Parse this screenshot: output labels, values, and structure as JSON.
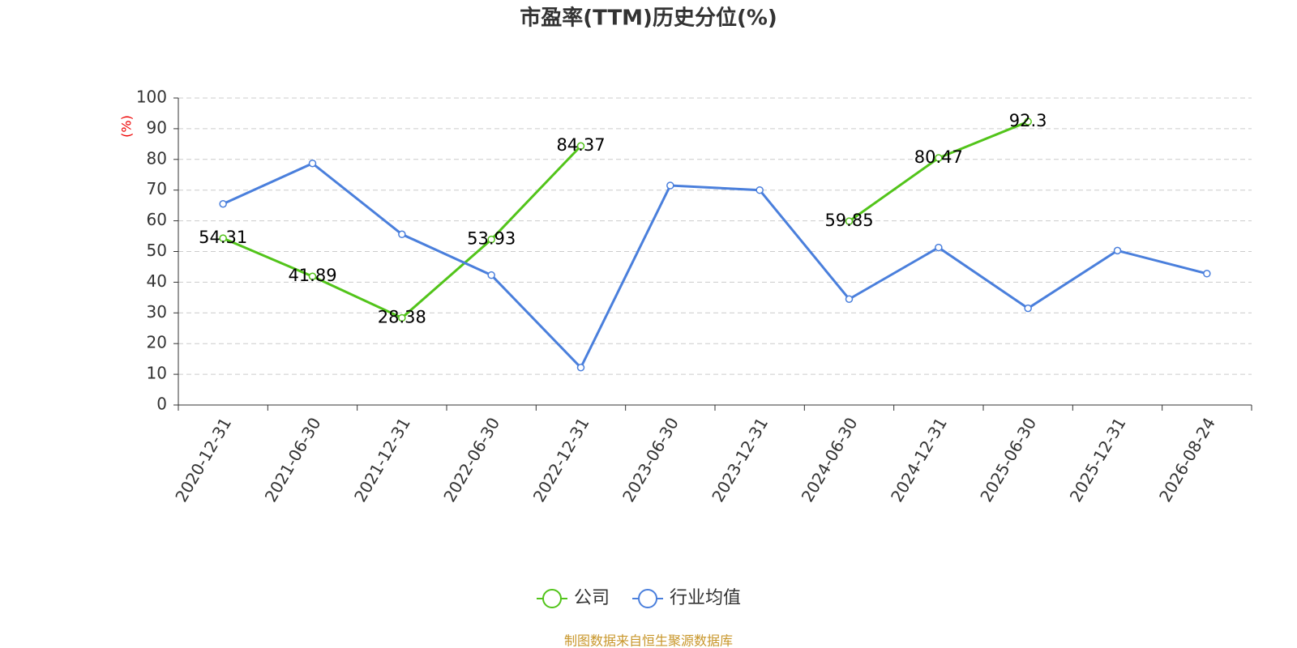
{
  "chart_data": {
    "type": "line",
    "title": "市盈率(TTM)历史分位(%)",
    "y_label": "(%)",
    "source": "制图数据来自恒生聚源数据库",
    "categories": [
      "2020-12-31",
      "2021-06-30",
      "2021-12-31",
      "2022-06-30",
      "2022-12-31",
      "2023-06-30",
      "2023-12-31",
      "2024-06-30",
      "2024-12-31",
      "2025-06-30",
      "2025-12-31",
      "2026-08-24"
    ],
    "series": [
      {
        "name": "公司",
        "color": "#52c41a",
        "values": [
          54.31,
          41.89,
          28.38,
          53.93,
          84.37,
          null,
          null,
          59.85,
          80.47,
          92.3,
          null,
          null
        ],
        "data_labels": true
      },
      {
        "name": "行业均值",
        "color": "#4a7fdc",
        "values": [
          65.5,
          78.7,
          55.6,
          42.3,
          12.2,
          71.5,
          70,
          34.5,
          51.3,
          31.5,
          50.3,
          42.8
        ],
        "data_labels": false
      }
    ],
    "ylim": [
      0,
      100
    ],
    "yticks": [
      0,
      10,
      20,
      30,
      40,
      50,
      60,
      70,
      80,
      90,
      100
    ],
    "grid": true
  }
}
